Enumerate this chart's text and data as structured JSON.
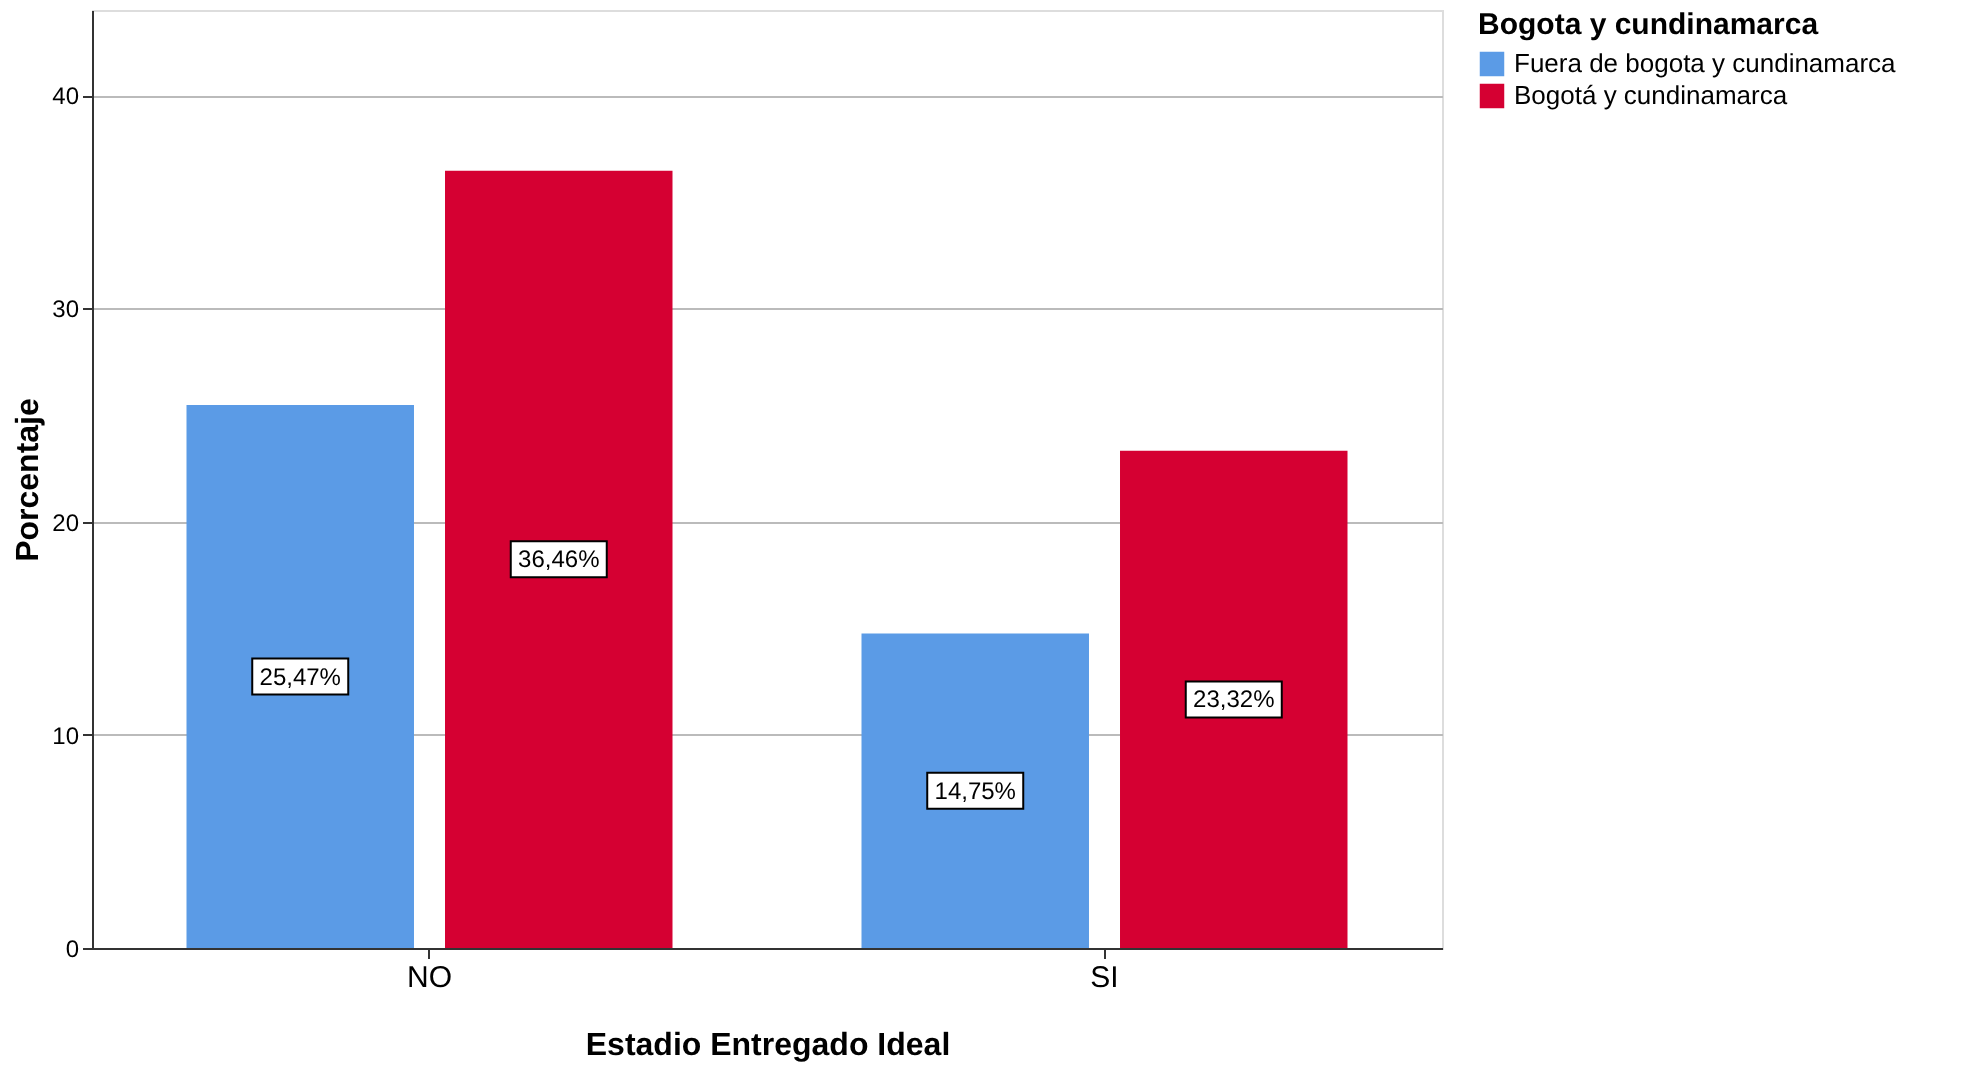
{
  "chart_data": {
    "type": "bar",
    "xlabel": "Estadio Entregado Ideal",
    "ylabel": "Porcentaje",
    "legend_title": "Bogota y cundinamarca",
    "categories": [
      "NO",
      "SI"
    ],
    "series": [
      {
        "name": "Fuera de bogota y cundinamarca",
        "color": "#5b9be6",
        "values": [
          25.47,
          14.75
        ],
        "value_labels": [
          "25,47%",
          "14,75%"
        ]
      },
      {
        "name": "Bogotá y cundinamarca",
        "color": "#d50032",
        "values": [
          36.46,
          23.32
        ],
        "value_labels": [
          "36,46%",
          "23,32%"
        ]
      }
    ],
    "ylim": [
      0,
      44
    ],
    "yticks": [
      0,
      10,
      20,
      30,
      40
    ],
    "grid": "y",
    "legend": "top right"
  }
}
